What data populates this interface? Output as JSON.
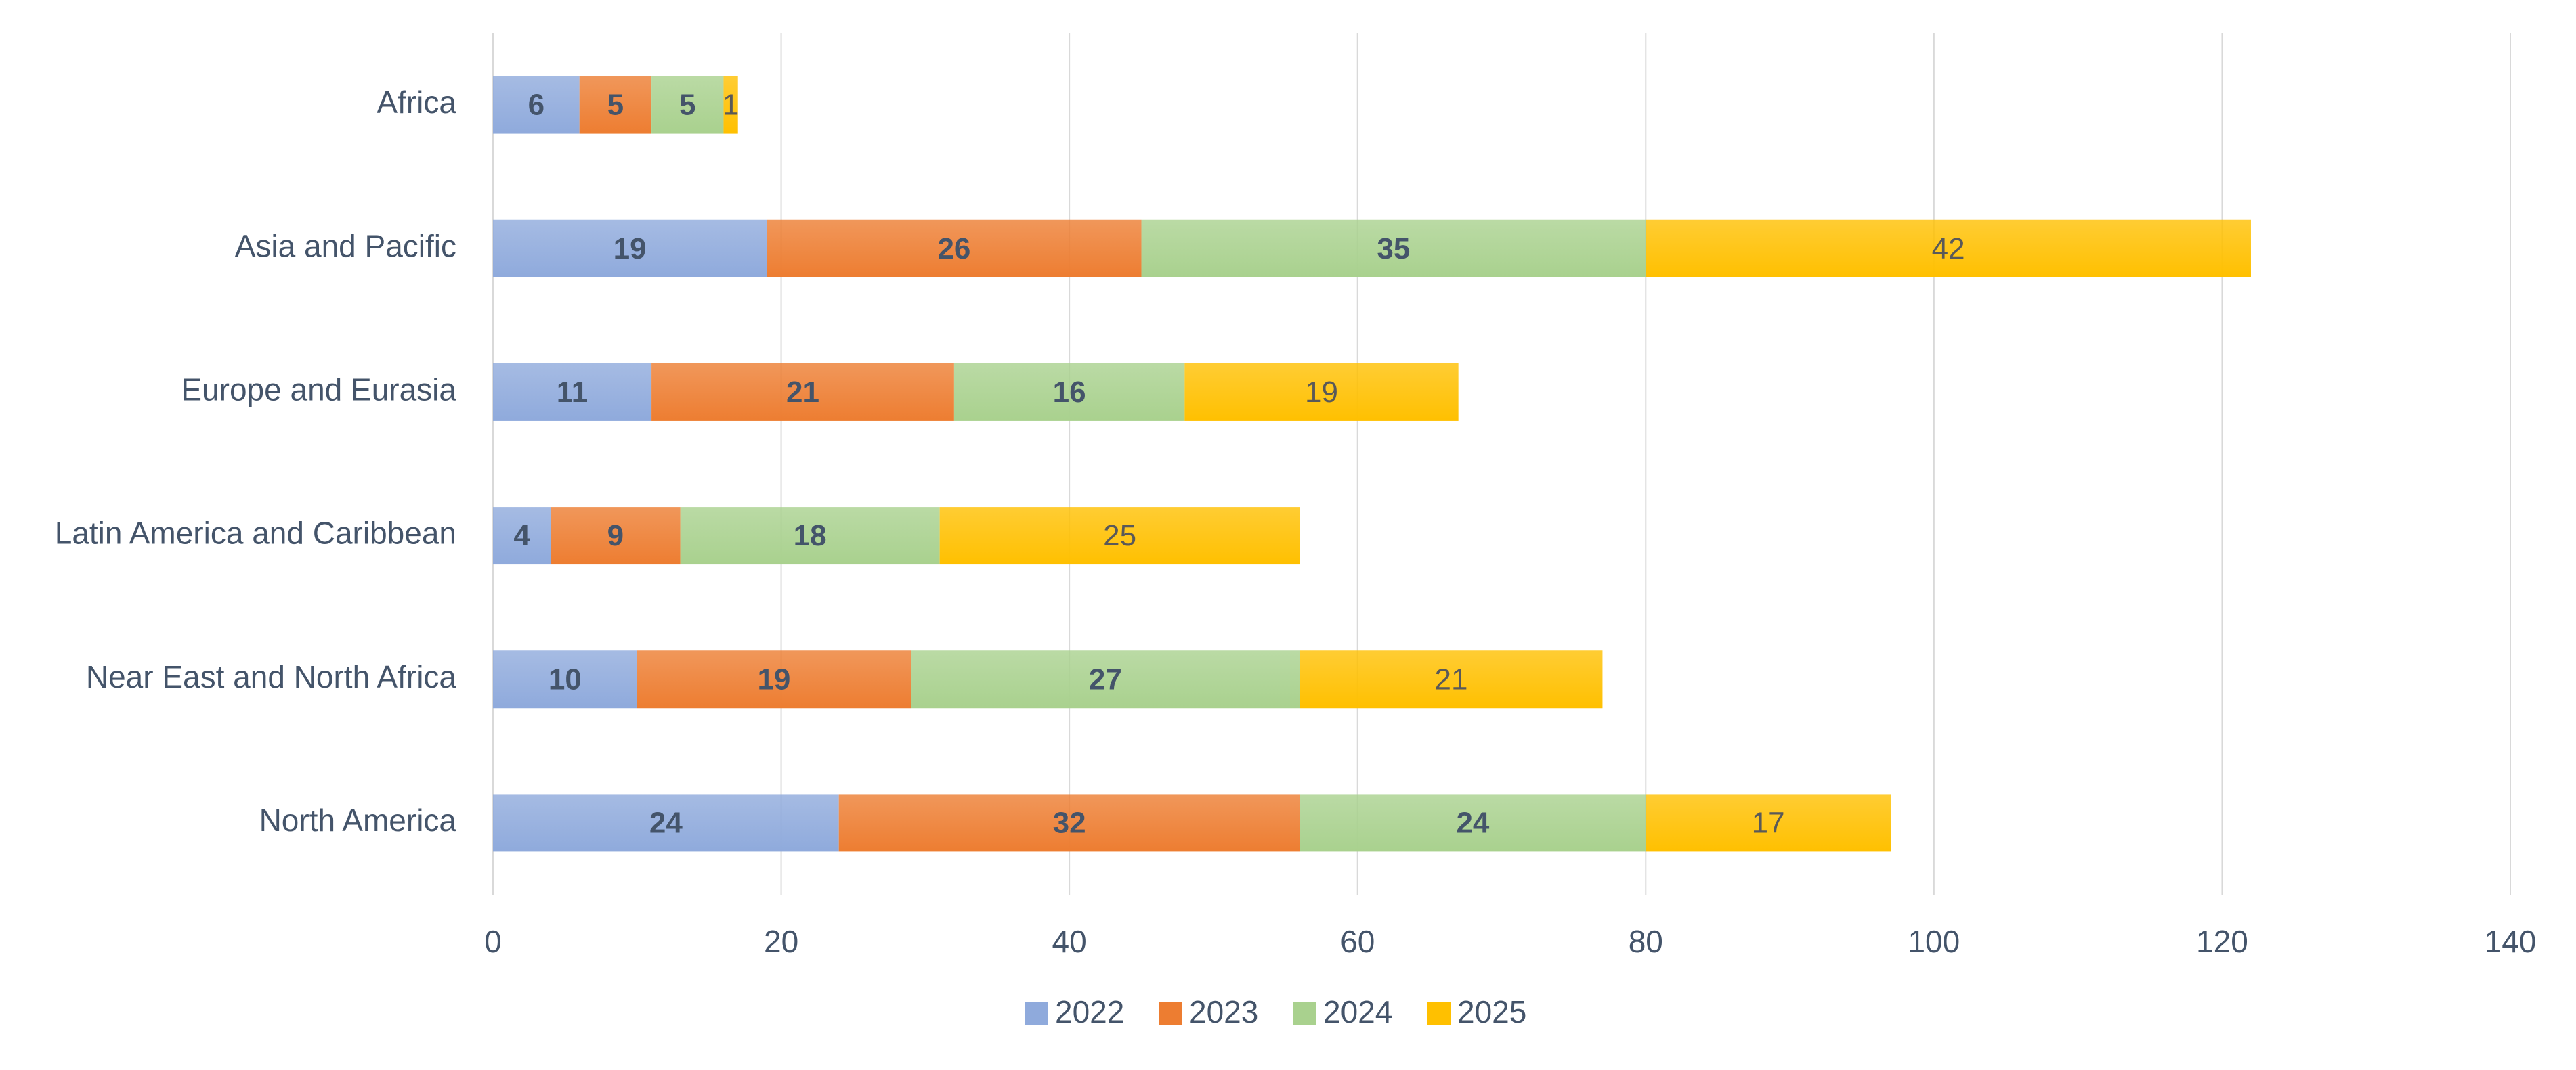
{
  "chart_data": {
    "type": "bar",
    "orientation": "horizontal",
    "stacked": true,
    "categories": [
      "Africa",
      "Asia and Pacific",
      "Europe and Eurasia",
      "Latin America and Caribbean",
      "Near East and North Africa",
      "North America"
    ],
    "series": [
      {
        "name": "2022",
        "color": "#8faadc",
        "values": [
          6,
          19,
          11,
          4,
          10,
          24
        ]
      },
      {
        "name": "2023",
        "color": "#ed7d31",
        "values": [
          5,
          26,
          21,
          9,
          19,
          32
        ]
      },
      {
        "name": "2024",
        "color": "#a9d18e",
        "values": [
          5,
          35,
          16,
          18,
          27,
          24
        ]
      },
      {
        "name": "2025",
        "color": "#ffc000",
        "values": [
          1,
          42,
          19,
          25,
          21,
          17
        ]
      }
    ],
    "xlim": [
      0,
      140
    ],
    "xticks": [
      0,
      20,
      40,
      60,
      80,
      100,
      120,
      140
    ],
    "grid": true,
    "legend": "bottom"
  }
}
